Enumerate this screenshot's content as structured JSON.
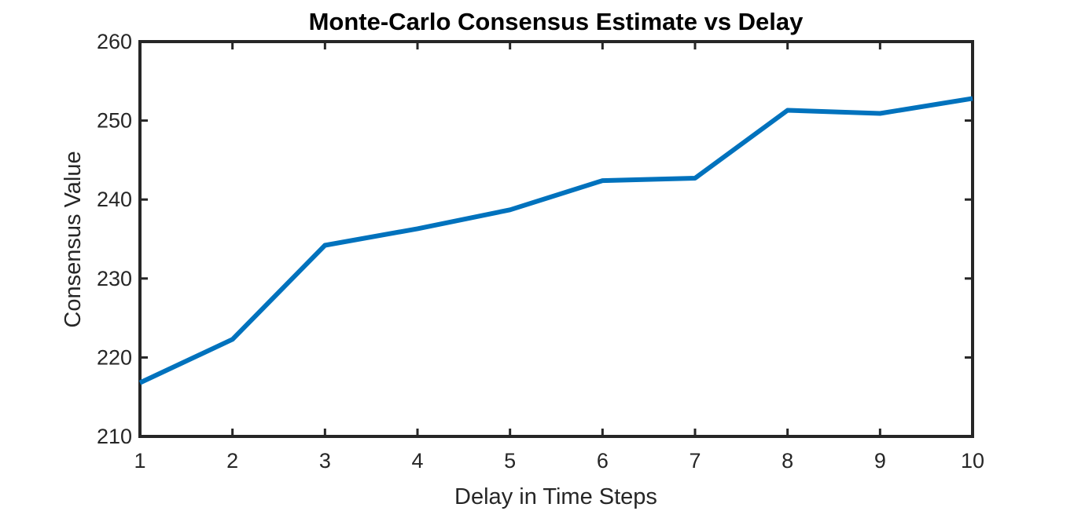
{
  "chart_data": {
    "type": "line",
    "title": "Monte-Carlo Consensus Estimate vs Delay",
    "xlabel": "Delay in Time Steps",
    "ylabel": "Consensus Value",
    "xlim": [
      1,
      10
    ],
    "ylim": [
      210,
      260
    ],
    "xticks": [
      "1",
      "2",
      "3",
      "4",
      "5",
      "6",
      "7",
      "8",
      "9",
      "10"
    ],
    "yticks": [
      "210",
      "220",
      "230",
      "240",
      "250",
      "260"
    ],
    "grid": false,
    "legend": "none",
    "series": [
      {
        "x": [
          1,
          2,
          3,
          4,
          5,
          6,
          7,
          8,
          9,
          10
        ],
        "values": [
          216.8,
          222.3,
          234.2,
          236.3,
          238.7,
          242.4,
          242.7,
          251.3,
          250.9,
          252.8
        ],
        "color": "#0072BD"
      }
    ]
  }
}
